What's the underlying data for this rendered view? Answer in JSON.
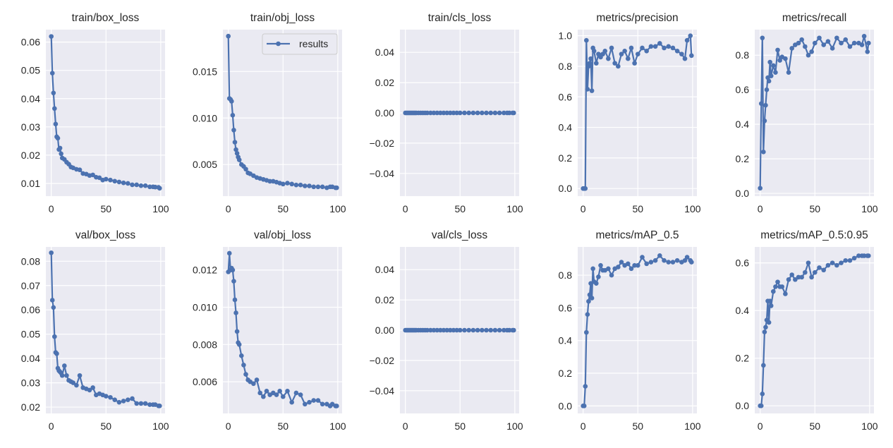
{
  "style": {
    "background": "#EAEAF2",
    "grid": "#FFFFFF",
    "line": "#4C72B0",
    "text": "#262626"
  },
  "legend": {
    "label": "results",
    "placement": "upper right of train/obj_loss"
  },
  "chart_data": [
    {
      "type": "line",
      "title": "train/box_loss",
      "xlim": [
        -4.95,
        103.95
      ],
      "ylim": [
        0.0055,
        0.0644
      ],
      "xticks": [
        "0",
        "50",
        "100"
      ],
      "yticks": [
        "0.01",
        "0.02",
        "0.03",
        "0.04",
        "0.05",
        "0.06"
      ],
      "grid": true,
      "x": [
        0,
        1,
        2,
        3,
        4,
        5,
        6,
        7,
        8,
        9,
        10,
        12,
        14,
        16,
        18,
        20,
        23,
        26,
        29,
        32,
        35,
        38,
        41,
        44,
        47,
        50,
        54,
        58,
        62,
        66,
        70,
        74,
        78,
        82,
        86,
        90,
        93,
        95,
        98,
        99
      ],
      "y": [
        0.062,
        0.049,
        0.042,
        0.0365,
        0.031,
        0.0265,
        0.026,
        0.022,
        0.0225,
        0.0205,
        0.019,
        0.0185,
        0.0175,
        0.0168,
        0.0158,
        0.0155,
        0.015,
        0.0148,
        0.0135,
        0.0133,
        0.0128,
        0.013,
        0.0122,
        0.012,
        0.0112,
        0.0115,
        0.0112,
        0.0108,
        0.0105,
        0.0102,
        0.01,
        0.0095,
        0.0095,
        0.0092,
        0.0092,
        0.0088,
        0.0088,
        0.0087,
        0.0086,
        0.0083
      ]
    },
    {
      "type": "line",
      "title": "train/obj_loss",
      "xlim": [
        -4.95,
        103.95
      ],
      "ylim": [
        0.0016,
        0.0195
      ],
      "xticks": [
        "0",
        "50",
        "100"
      ],
      "yticks": [
        "0.005",
        "0.010",
        "0.015"
      ],
      "grid": true,
      "legend": true,
      "x": [
        0,
        1,
        2,
        3,
        4,
        5,
        6,
        7,
        8,
        9,
        10,
        12,
        14,
        16,
        18,
        20,
        23,
        26,
        29,
        32,
        35,
        38,
        41,
        44,
        47,
        50,
        54,
        58,
        62,
        66,
        70,
        74,
        78,
        82,
        86,
        90,
        93,
        95,
        98,
        99
      ],
      "y": [
        0.0188,
        0.0121,
        0.012,
        0.0118,
        0.0103,
        0.0087,
        0.0074,
        0.0066,
        0.0062,
        0.0058,
        0.0055,
        0.005,
        0.0048,
        0.0045,
        0.0041,
        0.004,
        0.0038,
        0.0036,
        0.0035,
        0.0034,
        0.0033,
        0.0032,
        0.0032,
        0.0031,
        0.003,
        0.0029,
        0.003,
        0.0029,
        0.0028,
        0.0028,
        0.0027,
        0.0027,
        0.0026,
        0.0026,
        0.0026,
        0.0025,
        0.0026,
        0.0026,
        0.0025,
        0.0025
      ]
    },
    {
      "type": "line",
      "title": "train/cls_loss",
      "xlim": [
        -4.95,
        103.95
      ],
      "ylim": [
        -0.055,
        0.055
      ],
      "xticks": [
        "0",
        "50",
        "100"
      ],
      "yticks": [
        "−0.04",
        "−0.02",
        "0.00",
        "0.02",
        "0.04"
      ],
      "grid": true,
      "x": [
        0,
        1,
        2,
        3,
        4,
        5,
        6,
        7,
        8,
        9,
        10,
        12,
        14,
        16,
        18,
        20,
        23,
        26,
        29,
        32,
        35,
        38,
        41,
        44,
        47,
        50,
        54,
        58,
        62,
        66,
        70,
        74,
        78,
        82,
        86,
        90,
        93,
        95,
        98,
        99
      ],
      "y": [
        0,
        0,
        0,
        0,
        0,
        0,
        0,
        0,
        0,
        0,
        0,
        0,
        0,
        0,
        0,
        0,
        0,
        0,
        0,
        0,
        0,
        0,
        0,
        0,
        0,
        0,
        0,
        0,
        0,
        0,
        0,
        0,
        0,
        0,
        0,
        0,
        0,
        0,
        0,
        0
      ]
    },
    {
      "type": "line",
      "title": "metrics/precision",
      "xlim": [
        -4.95,
        103.95
      ],
      "ylim": [
        -0.05,
        1.04
      ],
      "xticks": [
        "0",
        "50",
        "100"
      ],
      "yticks": [
        "0.0",
        "0.2",
        "0.4",
        "0.6",
        "0.8",
        "1.0"
      ],
      "grid": true,
      "x": [
        0,
        1,
        2,
        3,
        4,
        5,
        6,
        7,
        8,
        9,
        10,
        12,
        14,
        16,
        18,
        20,
        23,
        26,
        29,
        32,
        35,
        38,
        41,
        44,
        47,
        50,
        54,
        58,
        62,
        66,
        70,
        74,
        78,
        82,
        86,
        90,
        93,
        95,
        98,
        99
      ],
      "y": [
        0,
        0,
        0,
        0.97,
        0.65,
        0.8,
        0.82,
        0.85,
        0.64,
        0.92,
        0.9,
        0.82,
        0.88,
        0.86,
        0.88,
        0.9,
        0.85,
        0.92,
        0.82,
        0.8,
        0.88,
        0.9,
        0.85,
        0.92,
        0.82,
        0.88,
        0.92,
        0.9,
        0.93,
        0.93,
        0.95,
        0.92,
        0.93,
        0.92,
        0.9,
        0.88,
        0.85,
        0.97,
        1.0,
        0.87
      ]
    },
    {
      "type": "line",
      "title": "metrics/recall",
      "xlim": [
        -4.95,
        103.95
      ],
      "ylim": [
        -0.016,
        0.948
      ],
      "xticks": [
        "0",
        "50",
        "100"
      ],
      "yticks": [
        "0.0",
        "0.2",
        "0.4",
        "0.6",
        "0.8"
      ],
      "grid": true,
      "x": [
        0,
        1,
        2,
        3,
        4,
        5,
        6,
        7,
        8,
        9,
        10,
        12,
        14,
        16,
        18,
        20,
        23,
        26,
        29,
        32,
        35,
        38,
        41,
        44,
        47,
        50,
        54,
        58,
        62,
        66,
        70,
        74,
        78,
        82,
        86,
        90,
        93,
        95,
        98,
        99
      ],
      "y": [
        0.03,
        0.52,
        0.9,
        0.24,
        0.42,
        0.51,
        0.6,
        0.67,
        0.65,
        0.76,
        0.68,
        0.74,
        0.7,
        0.83,
        0.77,
        0.79,
        0.78,
        0.7,
        0.84,
        0.86,
        0.87,
        0.89,
        0.85,
        0.8,
        0.82,
        0.87,
        0.9,
        0.86,
        0.88,
        0.84,
        0.9,
        0.87,
        0.89,
        0.85,
        0.87,
        0.87,
        0.86,
        0.91,
        0.82,
        0.87
      ]
    },
    {
      "type": "line",
      "title": "val/box_loss",
      "xlim": [
        -4.95,
        103.95
      ],
      "ylim": [
        0.0174,
        0.0859
      ],
      "xticks": [
        "0",
        "50",
        "100"
      ],
      "yticks": [
        "0.02",
        "0.03",
        "0.04",
        "0.05",
        "0.06",
        "0.07",
        "0.08"
      ],
      "grid": true,
      "x": [
        0,
        1,
        2,
        3,
        4,
        5,
        6,
        7,
        8,
        9,
        10,
        12,
        14,
        16,
        18,
        20,
        23,
        26,
        29,
        32,
        35,
        38,
        41,
        44,
        47,
        50,
        54,
        58,
        62,
        66,
        70,
        74,
        78,
        82,
        86,
        90,
        93,
        95,
        98,
        99
      ],
      "y": [
        0.0835,
        0.064,
        0.061,
        0.049,
        0.0425,
        0.042,
        0.036,
        0.035,
        0.0345,
        0.034,
        0.033,
        0.037,
        0.033,
        0.031,
        0.0305,
        0.03,
        0.029,
        0.033,
        0.028,
        0.0275,
        0.027,
        0.028,
        0.025,
        0.0255,
        0.025,
        0.0245,
        0.024,
        0.023,
        0.022,
        0.0225,
        0.023,
        0.0235,
        0.0215,
        0.0215,
        0.0215,
        0.021,
        0.021,
        0.021,
        0.0205,
        0.0205
      ]
    },
    {
      "type": "line",
      "title": "val/obj_loss",
      "xlim": [
        -4.95,
        103.95
      ],
      "ylim": [
        0.0043,
        0.01324
      ],
      "xticks": [
        "0",
        "50",
        "100"
      ],
      "yticks": [
        "0.006",
        "0.008",
        "0.010",
        "0.012"
      ],
      "grid": true,
      "x": [
        0,
        1,
        2,
        3,
        4,
        5,
        6,
        7,
        8,
        9,
        10,
        12,
        14,
        16,
        18,
        20,
        23,
        26,
        29,
        32,
        35,
        38,
        41,
        44,
        47,
        50,
        54,
        58,
        62,
        66,
        70,
        74,
        78,
        82,
        86,
        90,
        93,
        95,
        98,
        99
      ],
      "y": [
        0.0119,
        0.0129,
        0.012,
        0.0121,
        0.012,
        0.0114,
        0.0104,
        0.0097,
        0.0087,
        0.0081,
        0.008,
        0.0074,
        0.0069,
        0.0064,
        0.0061,
        0.006,
        0.0059,
        0.0061,
        0.0054,
        0.0052,
        0.0055,
        0.0053,
        0.0054,
        0.0053,
        0.0055,
        0.0052,
        0.0055,
        0.0049,
        0.0054,
        0.0053,
        0.0048,
        0.0049,
        0.005,
        0.005,
        0.0048,
        0.0048,
        0.0047,
        0.0048,
        0.0047,
        0.0047
      ]
    },
    {
      "type": "line",
      "title": "val/cls_loss",
      "xlim": [
        -4.95,
        103.95
      ],
      "ylim": [
        -0.055,
        0.055
      ],
      "xticks": [
        "0",
        "50",
        "100"
      ],
      "yticks": [
        "−0.04",
        "−0.02",
        "0.00",
        "0.02",
        "0.04"
      ],
      "grid": true,
      "x": [
        0,
        1,
        2,
        3,
        4,
        5,
        6,
        7,
        8,
        9,
        10,
        12,
        14,
        16,
        18,
        20,
        23,
        26,
        29,
        32,
        35,
        38,
        41,
        44,
        47,
        50,
        54,
        58,
        62,
        66,
        70,
        74,
        78,
        82,
        86,
        90,
        93,
        95,
        98,
        99
      ],
      "y": [
        0,
        0,
        0,
        0,
        0,
        0,
        0,
        0,
        0,
        0,
        0,
        0,
        0,
        0,
        0,
        0,
        0,
        0,
        0,
        0,
        0,
        0,
        0,
        0,
        0,
        0,
        0,
        0,
        0,
        0,
        0,
        0,
        0,
        0,
        0,
        0,
        0,
        0,
        0,
        0
      ]
    },
    {
      "type": "line",
      "title": "metrics/mAP_0.5",
      "xlim": [
        -4.95,
        103.95
      ],
      "ylim": [
        -0.046,
        0.973
      ],
      "xticks": [
        "0",
        "50",
        "100"
      ],
      "yticks": [
        "0.0",
        "0.2",
        "0.4",
        "0.6",
        "0.8"
      ],
      "grid": true,
      "x": [
        0,
        1,
        2,
        3,
        4,
        5,
        6,
        7,
        8,
        9,
        10,
        12,
        14,
        16,
        18,
        20,
        23,
        26,
        29,
        32,
        35,
        38,
        41,
        44,
        47,
        50,
        54,
        58,
        62,
        66,
        70,
        74,
        78,
        82,
        86,
        90,
        93,
        95,
        98,
        99
      ],
      "y": [
        0,
        0,
        0.12,
        0.45,
        0.56,
        0.64,
        0.68,
        0.75,
        0.66,
        0.84,
        0.76,
        0.75,
        0.79,
        0.86,
        0.83,
        0.83,
        0.84,
        0.8,
        0.84,
        0.85,
        0.88,
        0.86,
        0.87,
        0.84,
        0.86,
        0.86,
        0.91,
        0.87,
        0.88,
        0.89,
        0.92,
        0.89,
        0.88,
        0.88,
        0.89,
        0.88,
        0.89,
        0.91,
        0.89,
        0.88
      ]
    },
    {
      "type": "line",
      "title": "metrics/mAP_0.5:0.95",
      "xlim": [
        -4.95,
        103.95
      ],
      "ylim": [
        -0.032,
        0.667
      ],
      "xticks": [
        "0",
        "50",
        "100"
      ],
      "yticks": [
        "0.0",
        "0.2",
        "0.4",
        "0.6"
      ],
      "grid": true,
      "x": [
        0,
        1,
        2,
        3,
        4,
        5,
        6,
        7,
        8,
        9,
        10,
        12,
        14,
        16,
        18,
        20,
        23,
        26,
        29,
        32,
        35,
        38,
        41,
        44,
        47,
        50,
        54,
        58,
        62,
        66,
        70,
        74,
        78,
        82,
        86,
        90,
        93,
        95,
        98,
        99
      ],
      "y": [
        0,
        0,
        0.05,
        0.17,
        0.31,
        0.33,
        0.36,
        0.44,
        0.35,
        0.44,
        0.42,
        0.48,
        0.5,
        0.52,
        0.5,
        0.5,
        0.47,
        0.53,
        0.55,
        0.53,
        0.54,
        0.54,
        0.56,
        0.6,
        0.54,
        0.56,
        0.58,
        0.57,
        0.59,
        0.6,
        0.59,
        0.6,
        0.61,
        0.61,
        0.62,
        0.63,
        0.63,
        0.63,
        0.63,
        0.63
      ]
    }
  ]
}
